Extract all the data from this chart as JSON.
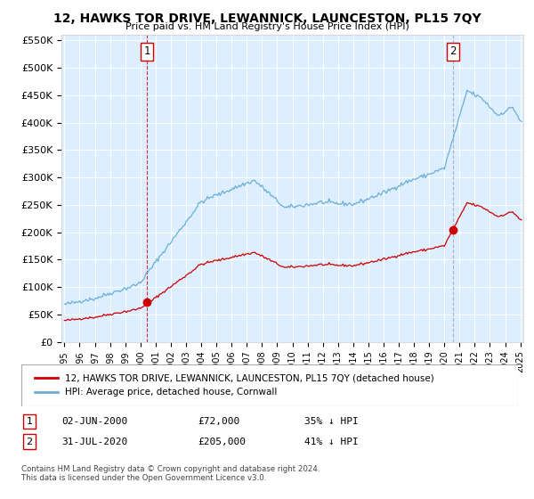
{
  "title": "12, HAWKS TOR DRIVE, LEWANNICK, LAUNCESTON, PL15 7QY",
  "subtitle": "Price paid vs. HM Land Registry's House Price Index (HPI)",
  "xlim_years": [
    1995,
    2025
  ],
  "ylim": [
    0,
    560000
  ],
  "yticks": [
    0,
    50000,
    100000,
    150000,
    200000,
    250000,
    300000,
    350000,
    400000,
    450000,
    500000,
    550000
  ],
  "ytick_labels": [
    "£0",
    "£50K",
    "£100K",
    "£150K",
    "£200K",
    "£250K",
    "£300K",
    "£350K",
    "£400K",
    "£450K",
    "£500K",
    "£550K"
  ],
  "xtick_years": [
    1995,
    1996,
    1997,
    1998,
    1999,
    2000,
    2001,
    2002,
    2003,
    2004,
    2005,
    2006,
    2007,
    2008,
    2009,
    2010,
    2011,
    2012,
    2013,
    2014,
    2015,
    2016,
    2017,
    2018,
    2019,
    2020,
    2021,
    2022,
    2023,
    2024,
    2025
  ],
  "purchase1_date": 2000.42,
  "purchase1_price": 72000,
  "purchase1_label": "1",
  "purchase2_date": 2020.58,
  "purchase2_price": 205000,
  "purchase2_label": "2",
  "legend_property": "12, HAWKS TOR DRIVE, LEWANNICK, LAUNCESTON, PL15 7QY (detached house)",
  "legend_hpi": "HPI: Average price, detached house, Cornwall",
  "annotation1_date": "02-JUN-2000",
  "annotation1_price": "£72,000",
  "annotation1_pct": "35% ↓ HPI",
  "annotation2_date": "31-JUL-2020",
  "annotation2_price": "£205,000",
  "annotation2_pct": "41% ↓ HPI",
  "footer": "Contains HM Land Registry data © Crown copyright and database right 2024.\nThis data is licensed under the Open Government Licence v3.0.",
  "hpi_color": "#6baed6",
  "property_color": "#cc0000",
  "vline1_color": "#cc0000",
  "vline2_color": "#aaaaaa",
  "plot_bg_color": "#ddeeff",
  "background_color": "#ffffff",
  "grid_color": "#ffffff"
}
